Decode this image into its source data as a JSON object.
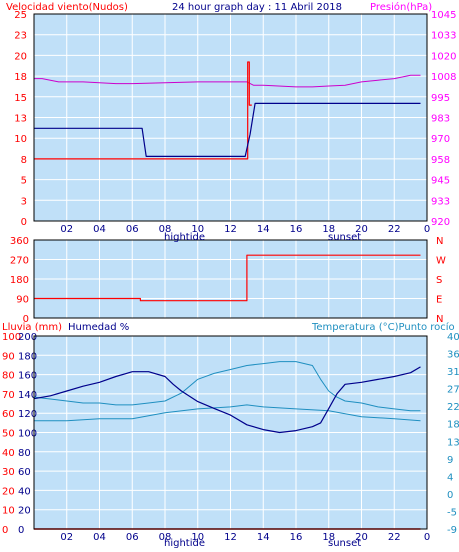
{
  "header": {
    "wind_label": "Velocidad viento(Nudos)",
    "title": "24 hour graph day : 11 Abril 2018",
    "pressure_label": "Presión(hPa)"
  },
  "lower_header": {
    "rain_label": "Lluvia (mm)",
    "humidity_label": "Humedad %",
    "temperature_label": "Temperatura (°C)Punto rocío"
  },
  "colors": {
    "plot_bg": "#c0e0f8",
    "panel_border": "#000000",
    "wind_axis": "#ff0000",
    "pressure_axis": "#ff00ff",
    "wind_line": "#00008b",
    "gust_line": "#ff0000",
    "pressure_line": "#cc00cc",
    "direction_line": "#ff0000",
    "humidity_line": "#00008b",
    "temperature_line": "#1f8fc0",
    "dewpoint_line": "#1f8fc0",
    "rain_line": "#ff0000",
    "humidity_axis": "#00008b",
    "temperature_axis": "#1f8fc0",
    "grid": "#ffffff",
    "footer_label": "#00008b"
  },
  "x_ticks": [
    "02",
    "04",
    "06",
    "08",
    "10",
    "12",
    "14",
    "16",
    "18",
    "20",
    "22"
  ],
  "last_tick": "0",
  "footer": {
    "hightide": "hightide",
    "sunset": "sunset"
  },
  "chart_data": [
    {
      "type": "line",
      "title": "24 hour graph day : 11 Abril 2018",
      "xlabel": "",
      "x_range": [
        0,
        24
      ],
      "y_left": {
        "label": "Velocidad viento(Nudos)",
        "range": [
          0,
          25
        ],
        "ticks": [
          "0",
          "3",
          "5",
          "8",
          "10",
          "13",
          "15",
          "18",
          "20",
          "23",
          "25"
        ]
      },
      "y_right": {
        "label": "Presión(hPa)",
        "range": [
          920,
          1045
        ],
        "ticks": [
          "920",
          "933",
          "945",
          "958",
          "970",
          "983",
          "995",
          "1008",
          "1020",
          "1033",
          "1045"
        ]
      },
      "grid": true,
      "series": [
        {
          "role": "wind",
          "axis": "left",
          "x": [
            0,
            6.6,
            6.85,
            12.9,
            13.2,
            13.5,
            23.6
          ],
          "y": [
            11.2,
            11.2,
            7.8,
            7.8,
            10.5,
            14.2,
            14.2
          ]
        },
        {
          "role": "gust",
          "axis": "left",
          "x": [
            0,
            6.35,
            6.35,
            13.05,
            13.05,
            13.15,
            13.15,
            13.3
          ],
          "y": [
            7.5,
            7.5,
            7.5,
            7.5,
            19.2,
            19.2,
            14.0,
            14.0
          ]
        },
        {
          "role": "pressure",
          "axis": "right",
          "x": [
            0,
            0.5,
            1.5,
            3,
            5,
            6,
            8,
            10,
            12,
            13,
            13.4,
            14,
            16,
            17,
            18,
            19,
            20,
            21,
            22,
            23,
            23.6
          ],
          "y": [
            1006,
            1006,
            1004,
            1004,
            1003,
            1003,
            1003.5,
            1004,
            1004,
            1004,
            1002,
            1002,
            1001,
            1001,
            1001.5,
            1002,
            1004,
            1005,
            1006,
            1008,
            1008
          ]
        }
      ]
    },
    {
      "type": "line",
      "xlabel": "",
      "x_range": [
        0,
        24
      ],
      "y_left": {
        "range": [
          0,
          360
        ],
        "ticks": [
          "0",
          "90",
          "180",
          "270",
          "360"
        ]
      },
      "y_right_labels": [
        "N",
        "E",
        "S",
        "W",
        "N"
      ],
      "grid": true,
      "series": [
        {
          "role": "direction",
          "x": [
            0,
            6.5,
            6.5,
            13.0,
            13.0,
            23.6
          ],
          "y": [
            90,
            90,
            80,
            80,
            290,
            290
          ]
        }
      ]
    },
    {
      "type": "line",
      "xlabel": "",
      "x_range": [
        0,
        24
      ],
      "y_rain": {
        "label": "Lluvia (mm)",
        "range": [
          0,
          100
        ],
        "ticks": [
          "0",
          "10",
          "20",
          "30",
          "40",
          "50",
          "60",
          "70",
          "80",
          "90",
          "100"
        ]
      },
      "y_humidity": {
        "label": "Humedad %",
        "range": [
          0,
          200
        ],
        "ticks": [
          "0",
          "20",
          "40",
          "60",
          "80",
          "100",
          "120",
          "140",
          "160",
          "180",
          "200"
        ]
      },
      "y_temperature": {
        "label": "Temperatura (°C)Punto rocío",
        "range": [
          -9,
          40
        ],
        "ticks": [
          "-9",
          "-5",
          "0",
          "4",
          "9",
          "13",
          "18",
          "22",
          "27",
          "31",
          "36",
          "40"
        ]
      },
      "grid": true,
      "series": [
        {
          "role": "humidity",
          "axis": "humidity",
          "x": [
            0,
            1,
            2,
            3,
            4,
            5,
            6,
            7,
            8,
            8.5,
            9,
            10,
            11,
            12,
            13,
            14,
            15,
            16,
            17,
            17.5,
            18,
            18.5,
            19,
            20,
            21,
            22,
            23,
            23.6
          ],
          "y": [
            135,
            138,
            143,
            148,
            152,
            158,
            163,
            163,
            158,
            150,
            143,
            132,
            125,
            118,
            108,
            103,
            100,
            102,
            106,
            110,
            125,
            140,
            150,
            152,
            155,
            158,
            162,
            168
          ]
        },
        {
          "role": "temperature",
          "axis": "temperature",
          "x": [
            0,
            1,
            2,
            3,
            4,
            5,
            6,
            7,
            8,
            9,
            10,
            11,
            12,
            13,
            14,
            15,
            16,
            17,
            17.5,
            18,
            18.5,
            19,
            20,
            21,
            22,
            23,
            23.6
          ],
          "y": [
            24.5,
            24.0,
            23.5,
            23.0,
            23.0,
            22.5,
            22.5,
            23.0,
            23.5,
            25.5,
            29.0,
            30.5,
            31.5,
            32.5,
            33.0,
            33.5,
            33.5,
            32.5,
            29.0,
            26.0,
            24.5,
            23.5,
            23.0,
            22.0,
            21.5,
            21.0,
            21.0
          ]
        },
        {
          "role": "dewpoint",
          "axis": "temperature",
          "x": [
            0,
            2,
            4,
            6,
            8,
            10,
            12,
            13,
            14,
            16,
            18,
            20,
            22,
            23.6
          ],
          "y": [
            18.5,
            18.5,
            19.0,
            19.0,
            20.5,
            21.5,
            22.0,
            22.5,
            22.0,
            21.5,
            21.0,
            19.5,
            19.0,
            18.5
          ]
        },
        {
          "role": "rain",
          "axis": "rain",
          "x": [
            0,
            23.6
          ],
          "y": [
            0,
            0
          ]
        }
      ]
    }
  ]
}
